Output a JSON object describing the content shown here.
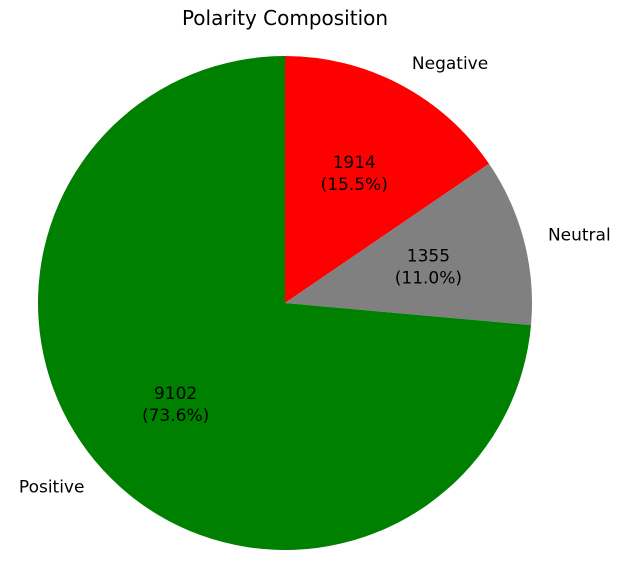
{
  "chart_data": {
    "type": "pie",
    "title": "Polarity Composition",
    "start_angle_deg": 90,
    "direction": "clockwise",
    "slices": [
      {
        "label": "Negative",
        "value": 1914,
        "percent": "15.5%",
        "color": "#ff0000"
      },
      {
        "label": "Neutral",
        "value": 1355,
        "percent": "11.0%",
        "color": "#808080"
      },
      {
        "label": "Positive",
        "value": 9102,
        "percent": "73.6%",
        "color": "#008000"
      }
    ]
  }
}
